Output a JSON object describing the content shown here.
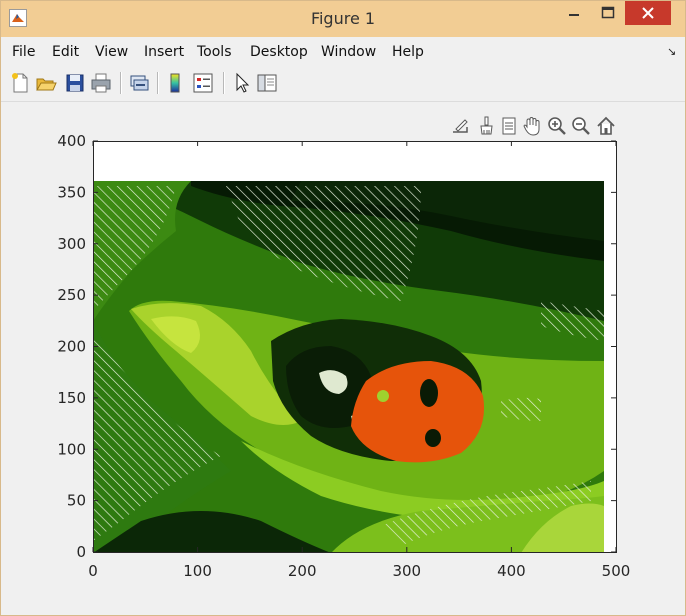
{
  "window": {
    "title": "Figure 1"
  },
  "menu": [
    "File",
    "Edit",
    "View",
    "Insert",
    "Tools",
    "Desktop",
    "Window",
    "Help"
  ],
  "toolbar": {
    "buttons": [
      "new-figure",
      "open-file",
      "save",
      "print",
      "link-plot",
      "insert-colorbar",
      "insert-legend",
      "edit-plot",
      "show-plot-tools"
    ]
  },
  "axes_toolbar": {
    "buttons": [
      "export",
      "brush",
      "data-tips",
      "pan",
      "zoom-in",
      "zoom-out",
      "restore-view"
    ]
  },
  "chart_data": {
    "type": "scatter",
    "xlim": [
      0,
      500
    ],
    "ylim": [
      0,
      400
    ],
    "xticks": [
      "0",
      "100",
      "200",
      "300",
      "400",
      "500"
    ],
    "yticks": [
      "0",
      "50",
      "100",
      "150",
      "200",
      "250",
      "300",
      "350",
      "400"
    ],
    "image_extent": {
      "x": [
        0,
        487
      ],
      "y": [
        0,
        359
      ]
    },
    "grid": false,
    "colors": {
      "bright_green": "#b6d930",
      "mid_green": "#7cbd1a",
      "green": "#5a9f10",
      "dark_green": "#2c6b0a",
      "very_dark": "#0a2205",
      "orange": "#e8540c",
      "pale": "#d7e6c5"
    }
  }
}
